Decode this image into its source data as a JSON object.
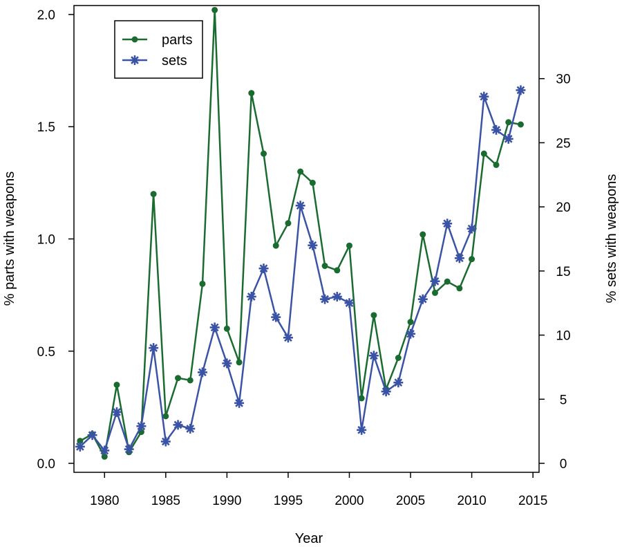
{
  "chart_data": {
    "type": "line",
    "xlabel": "Year",
    "ylabel_left": "% parts with weapons",
    "ylabel_right": "% sets with weapons",
    "xlim": [
      1977.5,
      2015.5
    ],
    "ylim_left": [
      -0.04,
      2.04
    ],
    "ylim_right": [
      -0.7,
      35.7
    ],
    "x_ticks": [
      1980,
      1985,
      1990,
      1995,
      2000,
      2005,
      2010,
      2015
    ],
    "y_ticks_left": [
      "0.0",
      "0.5",
      "1.0",
      "1.5",
      "2.0"
    ],
    "y_ticks_right": [
      "0",
      "5",
      "10",
      "15",
      "20",
      "25",
      "30"
    ],
    "grid": false,
    "legend_position": "top-left",
    "series": [
      {
        "name": "parts",
        "axis": "left",
        "color": "#1a6b2f",
        "marker": "circle",
        "x": [
          1978,
          1979,
          1980,
          1981,
          1982,
          1983,
          1984,
          1985,
          1986,
          1987,
          1988,
          1989,
          1990,
          1991,
          1992,
          1993,
          1994,
          1995,
          1996,
          1997,
          1998,
          1999,
          2000,
          2001,
          2002,
          2003,
          2004,
          2005,
          2006,
          2007,
          2008,
          2009,
          2010,
          2011,
          2012,
          2013,
          2014
        ],
        "values": [
          0.1,
          0.13,
          0.03,
          0.35,
          0.05,
          0.14,
          1.2,
          0.21,
          0.38,
          0.37,
          0.8,
          2.02,
          0.6,
          0.45,
          1.65,
          1.38,
          0.97,
          1.07,
          1.3,
          1.25,
          0.88,
          0.86,
          0.97,
          0.29,
          0.66,
          0.33,
          0.47,
          0.63,
          1.02,
          0.76,
          0.81,
          0.78,
          0.91,
          1.38,
          1.33,
          1.52,
          1.51
        ]
      },
      {
        "name": "sets",
        "axis": "right",
        "color": "#3a53a4",
        "marker": "asterisk",
        "x": [
          1978,
          1979,
          1980,
          1981,
          1982,
          1983,
          1984,
          1985,
          1986,
          1987,
          1988,
          1989,
          1990,
          1991,
          1992,
          1993,
          1994,
          1995,
          1996,
          1997,
          1998,
          1999,
          2000,
          2001,
          2002,
          2003,
          2004,
          2005,
          2006,
          2007,
          2008,
          2009,
          2010,
          2011,
          2012,
          2013,
          2014
        ],
        "values": [
          1.3,
          2.2,
          1.0,
          4.0,
          1.1,
          2.9,
          9.0,
          1.7,
          3.0,
          2.7,
          7.1,
          10.6,
          7.8,
          4.7,
          13.0,
          15.2,
          11.4,
          9.8,
          20.1,
          17.0,
          12.8,
          13.0,
          12.5,
          2.6,
          8.4,
          5.6,
          6.3,
          10.1,
          12.8,
          14.2,
          18.7,
          16.0,
          18.3,
          28.6,
          26.0,
          25.3,
          29.1
        ]
      }
    ]
  }
}
